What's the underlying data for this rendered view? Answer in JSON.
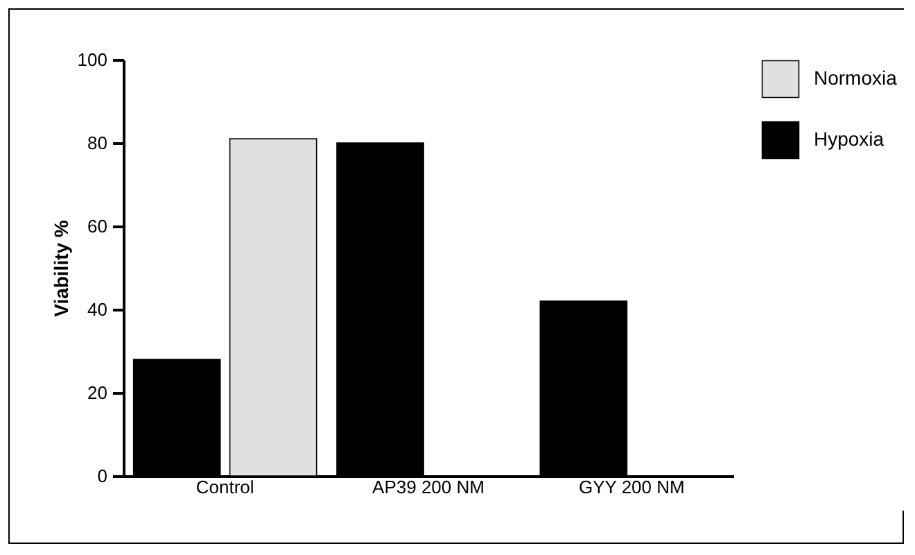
{
  "chart_data": {
    "type": "bar",
    "ylabel": "Viability %",
    "categories": [
      "Control",
      "AP39 200 NM",
      "GYY 200 NM"
    ],
    "series": [
      {
        "name": "Normoxia",
        "color": "#e0e0e2",
        "values": [
          81,
          null,
          null
        ]
      },
      {
        "name": "Hypoxia",
        "color": "#000000",
        "values": [
          28,
          80,
          42
        ]
      }
    ],
    "ylim": [
      0,
      100
    ],
    "yticks": [
      0,
      20,
      40,
      60,
      80,
      100
    ],
    "grid": false,
    "legend": "right"
  }
}
